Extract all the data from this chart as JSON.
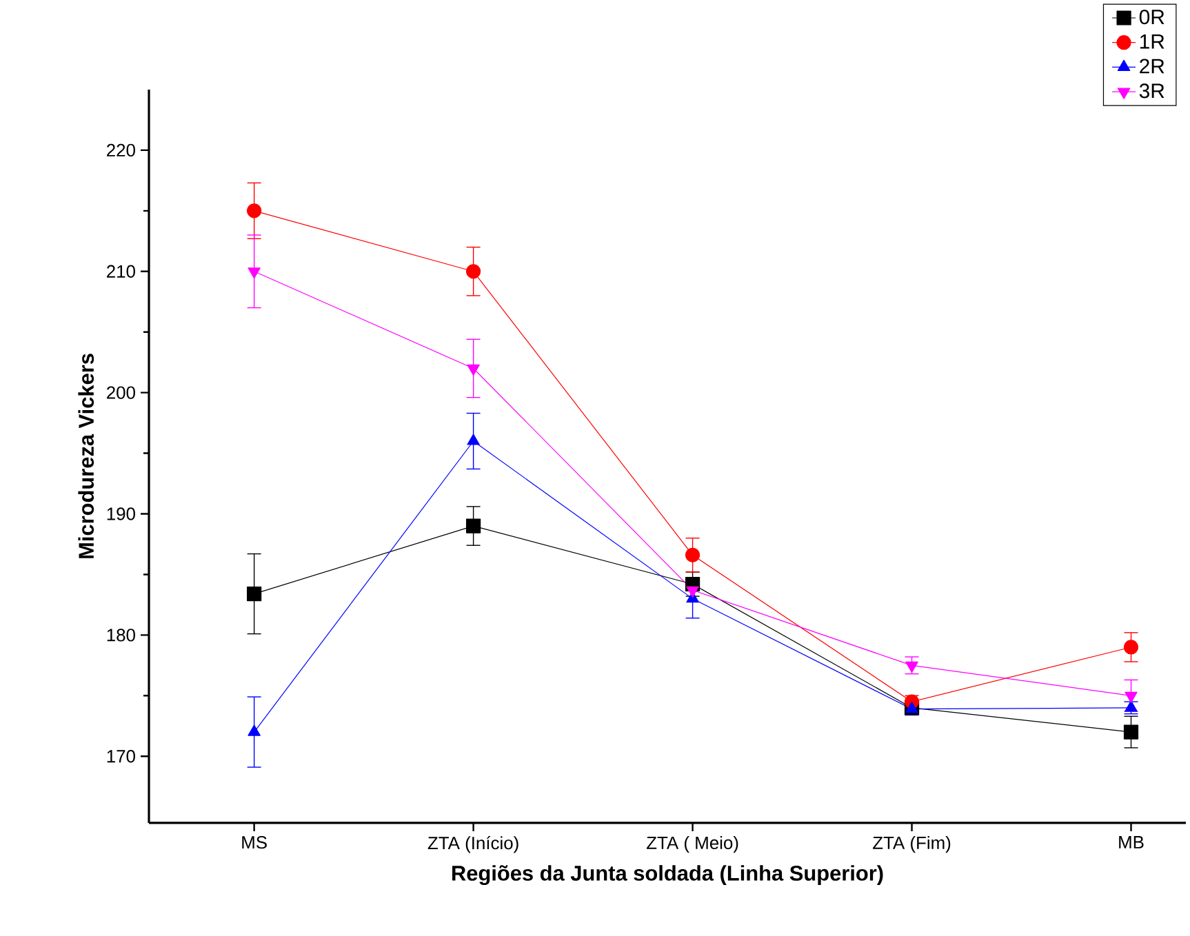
{
  "chart_data": {
    "type": "line",
    "xlabel": "Regiões da Junta soldada (Linha Superior)",
    "ylabel": "Microdureza Vickers",
    "categories": [
      "MS",
      "ZTA (Início)",
      "ZTA ( Meio)",
      "ZTA (Fim)",
      "MB"
    ],
    "series": [
      {
        "name": "0R",
        "color": "#000000",
        "marker": "square",
        "values": [
          183.4,
          189,
          184.2,
          174,
          172
        ],
        "errors": [
          3.3,
          1.6,
          1,
          0.5,
          1.3
        ]
      },
      {
        "name": "1R",
        "color": "#ff0000",
        "marker": "circle",
        "values": [
          215,
          210,
          186.6,
          174.5,
          179
        ],
        "errors": [
          2.3,
          2,
          1.4,
          0.5,
          1.2
        ]
      },
      {
        "name": "2R",
        "color": "#0000ff",
        "marker": "triangle",
        "values": [
          172,
          196,
          183,
          173.9,
          174
        ],
        "errors": [
          2.9,
          2.3,
          1.6,
          0.5,
          0.5
        ]
      },
      {
        "name": "3R",
        "color": "#ff00ff",
        "marker": "triangle-down",
        "values": [
          210,
          202,
          183.7,
          177.5,
          175
        ],
        "errors": [
          3,
          2.4,
          null,
          0.7,
          1.3
        ]
      }
    ],
    "ylim": [
      164.5,
      225
    ],
    "yticks": [
      170,
      180,
      190,
      200,
      210,
      220
    ],
    "legend": "top right",
    "grid": false,
    "line_style": "solid"
  }
}
